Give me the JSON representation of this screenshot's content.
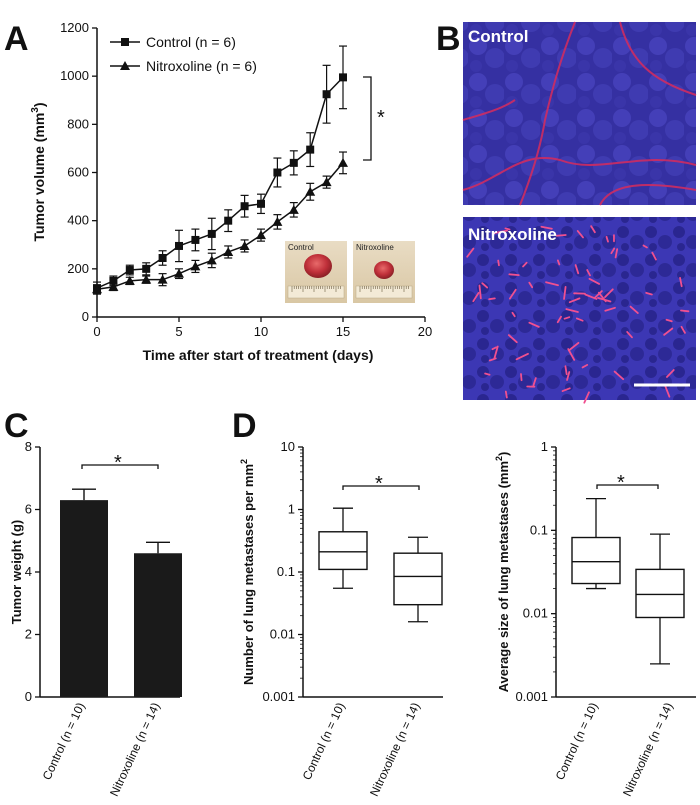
{
  "panels": {
    "A": "A",
    "B": "B",
    "C": "C",
    "D": "D"
  },
  "chart_data": [
    {
      "id": "A",
      "type": "line",
      "xlabel": "Time after start of treatment (days)",
      "ylabel_main": "Tumor volume (mm",
      "ylabel_sup": "3",
      "ylabel_end": ")",
      "xlim": [
        0,
        20
      ],
      "ylim": [
        0,
        1200
      ],
      "xticks": [
        0,
        5,
        10,
        15,
        20
      ],
      "yticks": [
        0,
        200,
        400,
        600,
        800,
        1000,
        1200
      ],
      "significance": "*",
      "series": [
        {
          "name": "Control (n = 6)",
          "marker": "square",
          "x": [
            0,
            1,
            2,
            3,
            4,
            5,
            6,
            7,
            8,
            9,
            10,
            11,
            12,
            13,
            14,
            15
          ],
          "y": [
            120,
            150,
            195,
            200,
            245,
            295,
            320,
            345,
            400,
            460,
            470,
            600,
            640,
            695,
            925,
            995
          ],
          "err": [
            25,
            20,
            20,
            25,
            30,
            65,
            45,
            65,
            45,
            45,
            40,
            60,
            50,
            70,
            120,
            130
          ]
        },
        {
          "name": "Nitroxoline (n = 6)",
          "marker": "triangle",
          "x": [
            0,
            1,
            2,
            3,
            4,
            5,
            6,
            7,
            8,
            9,
            10,
            11,
            12,
            13,
            14,
            15
          ],
          "y": [
            115,
            125,
            150,
            155,
            155,
            180,
            210,
            235,
            270,
            295,
            340,
            395,
            445,
            520,
            560,
            640
          ],
          "err": [
            15,
            15,
            15,
            15,
            25,
            20,
            25,
            30,
            25,
            25,
            25,
            30,
            30,
            35,
            25,
            45
          ]
        }
      ],
      "inset": {
        "left_label": "Control",
        "right_label": "Nitroxoline"
      }
    },
    {
      "id": "B",
      "type": "image",
      "top_label": "Control",
      "bottom_label": "Nitroxoline"
    },
    {
      "id": "C",
      "type": "bar",
      "ylabel": "Tumor weight (g)",
      "ylim": [
        0,
        8
      ],
      "yticks": [
        0,
        2,
        4,
        6,
        8
      ],
      "categories": [
        "Control (n = 10)",
        "Nitroxoline (n = 14)"
      ],
      "values": [
        6.3,
        4.6
      ],
      "err": [
        0.35,
        0.35
      ],
      "significance": "*"
    },
    {
      "id": "D1",
      "type": "box",
      "scale": "log",
      "ylabel_main": "Number of lung metastases per mm",
      "ylabel_sup": "2",
      "ylim": [
        0.001,
        10
      ],
      "yticks": [
        "0.001",
        "0.01",
        "0.1",
        "1",
        "10"
      ],
      "categories": [
        "Control (n = 10)",
        "Nitroxoline (n = 14)"
      ],
      "boxes": [
        {
          "min": 0.055,
          "q1": 0.11,
          "median": 0.21,
          "q3": 0.44,
          "max": 1.05
        },
        {
          "min": 0.016,
          "q1": 0.03,
          "median": 0.085,
          "q3": 0.2,
          "max": 0.36
        }
      ],
      "significance": "*"
    },
    {
      "id": "D2",
      "type": "box",
      "scale": "log",
      "ylabel_main": "Average size of lung metastases (mm",
      "ylabel_sup": "2",
      "ylabel_end": ")",
      "ylim": [
        0.001,
        1
      ],
      "yticks": [
        "0.001",
        "0.01",
        "0.1",
        "1"
      ],
      "categories": [
        "Control (n = 10)",
        "Nitroxoline (n = 14)"
      ],
      "boxes": [
        {
          "min": 0.02,
          "q1": 0.023,
          "median": 0.042,
          "q3": 0.082,
          "max": 0.24
        },
        {
          "min": 0.0025,
          "q1": 0.009,
          "median": 0.017,
          "q3": 0.034,
          "max": 0.09
        }
      ],
      "significance": "*"
    }
  ]
}
